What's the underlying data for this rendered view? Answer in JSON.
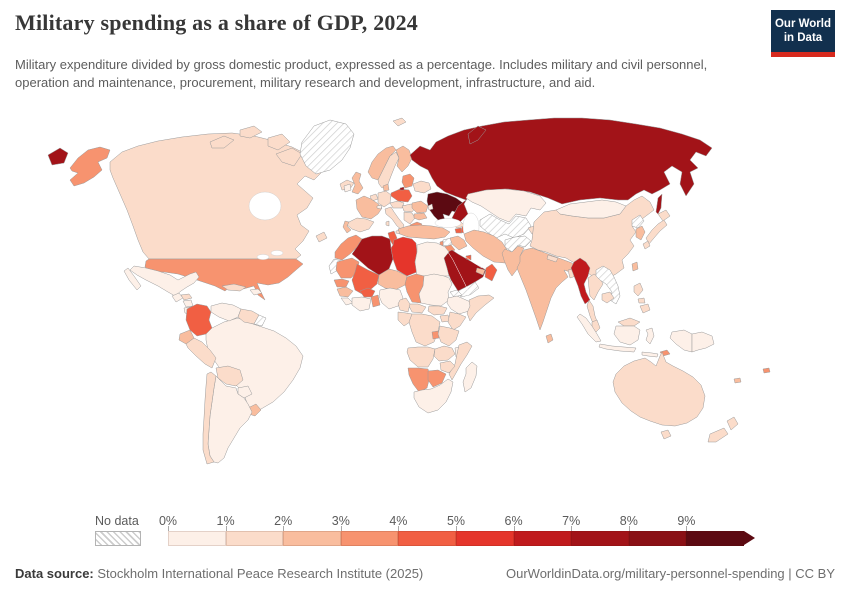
{
  "header": {
    "title": "Military spending as a share of GDP, 2024",
    "subtitle": "Military expenditure divided by gross domestic product, expressed as a percentage. Includes military and civil personnel, operation and maintenance, procurement, military research and development, infrastructure, and aid.",
    "logo": {
      "line1": "Our World",
      "line2": "in Data",
      "bg": "#12304e",
      "accent": "#d7291d"
    }
  },
  "legend": {
    "no_data_label": "No data"
  },
  "footer": {
    "source_label": "Data source:",
    "source_text": " Stockholm International Peace Research Institute (2025)",
    "right_text": "OurWorldinData.org/military-personnel-spending | CC BY"
  },
  "chart_data": {
    "type": "choropleth_map",
    "title": "Military spending as a share of GDP, 2024",
    "unit": "% of GDP",
    "legend_position": "bottom",
    "bin_labels": [
      "0%",
      "1%",
      "2%",
      "3%",
      "4%",
      "5%",
      "6%",
      "7%",
      "8%",
      "9%"
    ],
    "bin_colors": [
      "#fdf0e8",
      "#fbdcca",
      "#f9bd9e",
      "#f7936f",
      "#f15f43",
      "#e5352b",
      "#c01a1d",
      "#a21318",
      "#8a1015",
      "#5c0a12"
    ],
    "open_ended_top": true,
    "no_data_style": "diagonal-hatch",
    "map_border_color": "#9a9a9a",
    "country_bins": {
      "alaska": 3,
      "usa": 3,
      "canada": 1,
      "canada-i1": 1,
      "canada-i2": 1,
      "canada-i3": 1,
      "baffin": 1,
      "newfoundland": 1,
      "greenland": "nd",
      "mexico": 0,
      "baja": 0,
      "guatemala": 0,
      "honduras": 1,
      "nicaragua": 0,
      "costarica-panama": 0,
      "cuba": 1,
      "hispaniola": 0,
      "colombia": 4,
      "venezuela": 0,
      "guyana": 1,
      "french-guiana": "nd",
      "ecuador": 2,
      "peru": 1,
      "brazil": 0,
      "bolivia": 1,
      "paraguay": 0,
      "uruguay": 2,
      "chile": 1,
      "argentina": 0,
      "iceland": 1,
      "svalbard": 1,
      "norway": 2,
      "sweden": 1,
      "finland": 2,
      "denmark": 2,
      "uk": 2,
      "ireland": 0,
      "benelux": 1,
      "germany": 1,
      "france": 2,
      "spain": 1,
      "portugal": 2,
      "italy": 1,
      "sicily": 1,
      "sardinia": 1,
      "switzerland": 0,
      "czech-austria": 1,
      "poland": 4,
      "baltics": 3,
      "kaliningrad": 7,
      "belarus": 1,
      "ukraine": 9,
      "moldova": 0,
      "hungary-slovakia": 1,
      "romania": 2,
      "balkans": 1,
      "bulgaria": 2,
      "greece": 3,
      "turkey": 2,
      "russia": 7,
      "chukotka": 7,
      "novaya-zemlya": 7,
      "sakhalin": 7,
      "georgia": 1,
      "armenia": 4,
      "azerbaijan": 4,
      "kazakhstan": 0,
      "turkmen-uzbek": "nd",
      "kyrgyz-tajik": 1,
      "afghanistan": "nd",
      "iran": 2,
      "iraq": 2,
      "syria": "nd",
      "lebanon": 3,
      "israel": 8,
      "jordan": 3,
      "saudi": 7,
      "kuwait": 4,
      "yemen": "nd",
      "oman": 4,
      "uae": 2,
      "pakistan": 2,
      "india": 2,
      "nepal": 1,
      "bangladesh": 1,
      "sri-lanka": 2,
      "myanmar": 6,
      "china": 1,
      "mongolia": 0,
      "north-korea": "nd",
      "south-korea": 2,
      "japan-hokkaido": 1,
      "japan-honshu": 1,
      "japan-kyushu": 1,
      "taiwan": 2,
      "thailand": 1,
      "thai-peninsula": 1,
      "laos-vietnam": "nd",
      "cambodia": 1,
      "malaysia": 1,
      "malaysia-borneo": 1,
      "sumatra": 0,
      "java": 0,
      "kalimantan": 0,
      "sulawesi": 0,
      "lesser-sunda": 0,
      "papua": 0,
      "png": 0,
      "timor": 3,
      "luzon": 1,
      "visayas": 1,
      "mindanao": 1,
      "fiji": 3,
      "new-caledonia": 2,
      "australia": 1,
      "tasmania": 1,
      "nz-north": 1,
      "nz-south": 1,
      "morocco": 3,
      "western-sahara": "nd",
      "algeria": 7,
      "tunisia": 4,
      "libya": 5,
      "egypt": 0,
      "mauritania": 3,
      "mali": 4,
      "senegal": 3,
      "guinea": 2,
      "sierra-liberia": 0,
      "ivory-ghana": 0,
      "burkina": 4,
      "togo-benin": 3,
      "niger": 2,
      "nigeria": 0,
      "chad": 3,
      "sudan": 0,
      "eritrea": "nd",
      "ethiopia": 0,
      "somalia": 1,
      "south-sudan": 1,
      "uganda": 1,
      "kenya": 1,
      "car": 1,
      "cameroon": 1,
      "congo-gabon": 1,
      "drc": 1,
      "rwanda-burundi": 3,
      "tanzania": 1,
      "angola": 1,
      "zambia": 1,
      "malawi": 0,
      "mozambique": 1,
      "zimbabwe": 1,
      "namibia": 3,
      "botswana": 3,
      "south-africa": 0,
      "madagascar": 0
    }
  }
}
